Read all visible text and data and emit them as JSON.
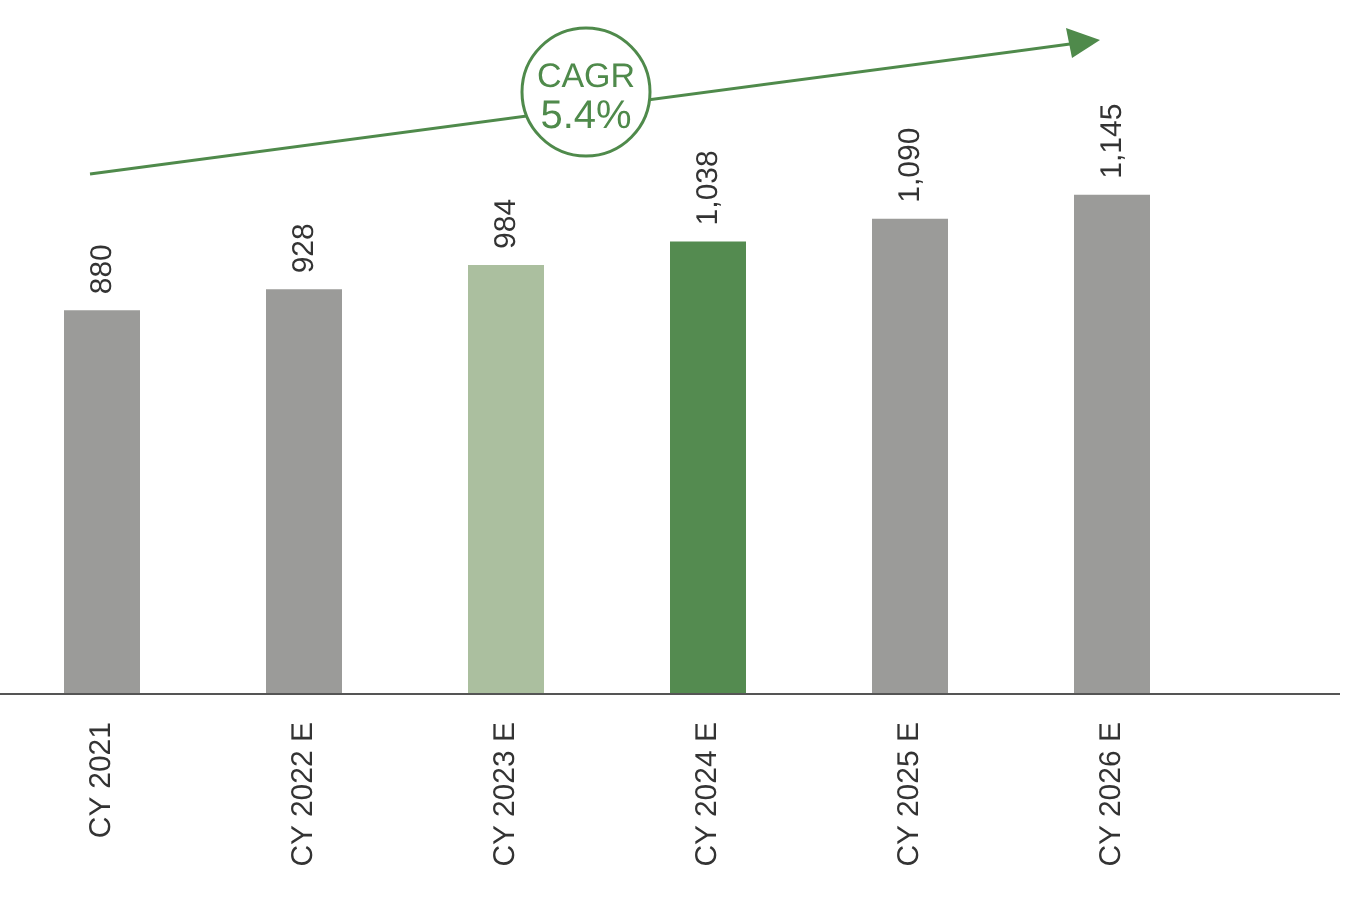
{
  "chart_data": {
    "type": "bar",
    "categories": [
      "CY 2021",
      "CY 2022 E",
      "CY 2023 E",
      "CY 2024 E",
      "CY 2025 E",
      "CY 2026 E"
    ],
    "values": [
      880,
      928,
      984,
      1038,
      1090,
      1145
    ],
    "colors": [
      "#9b9b99",
      "#9b9b99",
      "#abbf9f",
      "#548b50",
      "#9b9b99",
      "#9b9b99"
    ],
    "value_labels": [
      "880",
      "928",
      "984",
      "1,038",
      "1,090",
      "1,145"
    ],
    "annotations": [
      "CAGR",
      "5.4%"
    ]
  }
}
